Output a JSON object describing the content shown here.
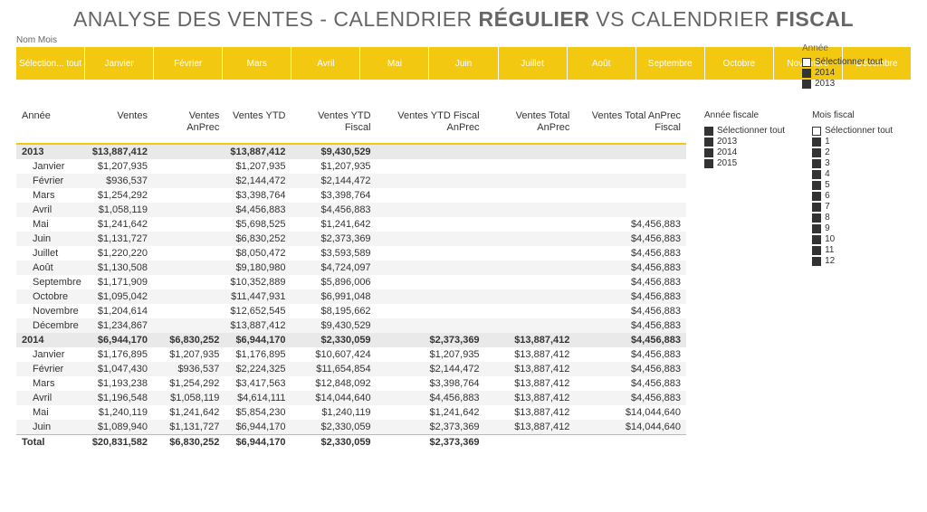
{
  "title_parts": {
    "p1": "ANALYSE DES VENTES - CALENDRIER ",
    "b1": "RÉGULIER",
    "p2": " VS CALENDRIER ",
    "b2": "FISCAL"
  },
  "colors": {
    "accent": "#f2c811",
    "header_text": "#666666",
    "row_alt": "#f4f4f4",
    "row_year": "#e9e9e9"
  },
  "month_slicer": {
    "label": "Nom Mois",
    "items": [
      "Sélection... tout",
      "Janvier",
      "Février",
      "Mars",
      "Avril",
      "Mai",
      "Juin",
      "Juillet",
      "Août",
      "Septembre",
      "Octobre",
      "Novembre",
      "Décembre"
    ]
  },
  "year_slicer_top": {
    "label": "Année",
    "items": [
      {
        "label": "Sélectionner tout",
        "checked": false
      },
      {
        "label": "2014",
        "checked": true
      },
      {
        "label": "2013",
        "checked": true
      }
    ]
  },
  "fiscal_year_slicer": {
    "label": "Année fiscale",
    "items": [
      {
        "label": "Sélectionner tout",
        "checked": true
      },
      {
        "label": "2013",
        "checked": true
      },
      {
        "label": "2014",
        "checked": true
      },
      {
        "label": "2015",
        "checked": true
      }
    ]
  },
  "fiscal_month_slicer": {
    "label": "Mois fiscal",
    "items": [
      {
        "label": "Sélectionner tout",
        "checked": false
      },
      {
        "label": "1",
        "checked": true
      },
      {
        "label": "2",
        "checked": true
      },
      {
        "label": "3",
        "checked": true
      },
      {
        "label": "4",
        "checked": true
      },
      {
        "label": "5",
        "checked": true
      },
      {
        "label": "6",
        "checked": true
      },
      {
        "label": "7",
        "checked": true
      },
      {
        "label": "8",
        "checked": true
      },
      {
        "label": "9",
        "checked": true
      },
      {
        "label": "10",
        "checked": true
      },
      {
        "label": "11",
        "checked": true
      },
      {
        "label": "12",
        "checked": true
      }
    ]
  },
  "table": {
    "columns": [
      "Année",
      "Ventes",
      "Ventes AnPrec",
      "Ventes YTD",
      "Ventes YTD Fiscal",
      "Ventes YTD Fiscal AnPrec",
      "Ventes Total AnPrec",
      "Ventes Total AnPrec Fiscal"
    ],
    "rows": [
      {
        "type": "year",
        "cells": [
          "2013",
          "$13,887,412",
          "",
          "$13,887,412",
          "$9,430,529",
          "",
          "",
          ""
        ]
      },
      {
        "type": "month",
        "cells": [
          "Janvier",
          "$1,207,935",
          "",
          "$1,207,935",
          "$1,207,935",
          "",
          "",
          ""
        ]
      },
      {
        "type": "month",
        "cells": [
          "Février",
          "$936,537",
          "",
          "$2,144,472",
          "$2,144,472",
          "",
          "",
          ""
        ]
      },
      {
        "type": "month",
        "cells": [
          "Mars",
          "$1,254,292",
          "",
          "$3,398,764",
          "$3,398,764",
          "",
          "",
          ""
        ]
      },
      {
        "type": "month",
        "cells": [
          "Avril",
          "$1,058,119",
          "",
          "$4,456,883",
          "$4,456,883",
          "",
          "",
          ""
        ]
      },
      {
        "type": "month",
        "cells": [
          "Mai",
          "$1,241,642",
          "",
          "$5,698,525",
          "$1,241,642",
          "",
          "",
          "$4,456,883"
        ]
      },
      {
        "type": "month",
        "cells": [
          "Juin",
          "$1,131,727",
          "",
          "$6,830,252",
          "$2,373,369",
          "",
          "",
          "$4,456,883"
        ]
      },
      {
        "type": "month",
        "cells": [
          "Juillet",
          "$1,220,220",
          "",
          "$8,050,472",
          "$3,593,589",
          "",
          "",
          "$4,456,883"
        ]
      },
      {
        "type": "month",
        "cells": [
          "Août",
          "$1,130,508",
          "",
          "$9,180,980",
          "$4,724,097",
          "",
          "",
          "$4,456,883"
        ]
      },
      {
        "type": "month",
        "cells": [
          "Septembre",
          "$1,171,909",
          "",
          "$10,352,889",
          "$5,896,006",
          "",
          "",
          "$4,456,883"
        ]
      },
      {
        "type": "month",
        "cells": [
          "Octobre",
          "$1,095,042",
          "",
          "$11,447,931",
          "$6,991,048",
          "",
          "",
          "$4,456,883"
        ]
      },
      {
        "type": "month",
        "cells": [
          "Novembre",
          "$1,204,614",
          "",
          "$12,652,545",
          "$8,195,662",
          "",
          "",
          "$4,456,883"
        ]
      },
      {
        "type": "month",
        "cells": [
          "Décembre",
          "$1,234,867",
          "",
          "$13,887,412",
          "$9,430,529",
          "",
          "",
          "$4,456,883"
        ]
      },
      {
        "type": "year",
        "cells": [
          "2014",
          "$6,944,170",
          "$6,830,252",
          "$6,944,170",
          "$2,330,059",
          "$2,373,369",
          "$13,887,412",
          "$4,456,883"
        ]
      },
      {
        "type": "month",
        "cells": [
          "Janvier",
          "$1,176,895",
          "$1,207,935",
          "$1,176,895",
          "$10,607,424",
          "$1,207,935",
          "$13,887,412",
          "$4,456,883"
        ]
      },
      {
        "type": "month",
        "cells": [
          "Février",
          "$1,047,430",
          "$936,537",
          "$2,224,325",
          "$11,654,854",
          "$2,144,472",
          "$13,887,412",
          "$4,456,883"
        ]
      },
      {
        "type": "month",
        "cells": [
          "Mars",
          "$1,193,238",
          "$1,254,292",
          "$3,417,563",
          "$12,848,092",
          "$3,398,764",
          "$13,887,412",
          "$4,456,883"
        ]
      },
      {
        "type": "month",
        "cells": [
          "Avril",
          "$1,196,548",
          "$1,058,119",
          "$4,614,111",
          "$14,044,640",
          "$4,456,883",
          "$13,887,412",
          "$4,456,883"
        ]
      },
      {
        "type": "month",
        "cells": [
          "Mai",
          "$1,240,119",
          "$1,241,642",
          "$5,854,230",
          "$1,240,119",
          "$1,241,642",
          "$13,887,412",
          "$14,044,640"
        ]
      },
      {
        "type": "month",
        "cells": [
          "Juin",
          "$1,089,940",
          "$1,131,727",
          "$6,944,170",
          "$2,330,059",
          "$2,373,369",
          "$13,887,412",
          "$14,044,640"
        ]
      },
      {
        "type": "total",
        "cells": [
          "Total",
          "$20,831,582",
          "$6,830,252",
          "$6,944,170",
          "$2,330,059",
          "$2,373,369",
          "",
          ""
        ]
      }
    ]
  }
}
